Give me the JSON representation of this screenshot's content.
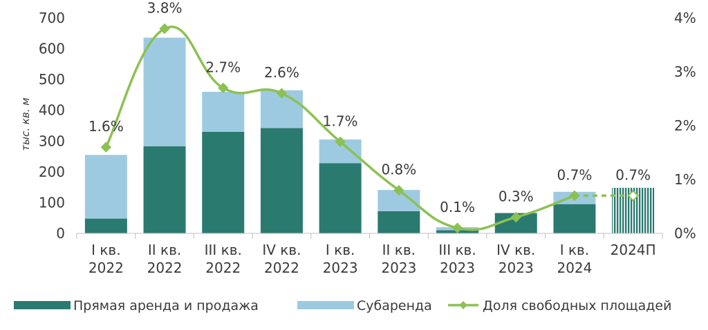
{
  "chart_data": {
    "type": "bar",
    "stacked": true,
    "categories": [
      [
        "I кв.",
        "2022"
      ],
      [
        "II кв.",
        "2022"
      ],
      [
        "III кв.",
        "2022"
      ],
      [
        "IV кв.",
        "2022"
      ],
      [
        "I кв.",
        "2023"
      ],
      [
        "II кв.",
        "2023"
      ],
      [
        "III кв.",
        "2023"
      ],
      [
        "IV кв.",
        "2023"
      ],
      [
        "I кв.",
        "2024"
      ],
      [
        "2024П"
      ]
    ],
    "series": [
      {
        "name": "Прямая аренда и продажа",
        "type": "bar",
        "color": "#2a7a70",
        "values": [
          48,
          283,
          330,
          342,
          228,
          72,
          10,
          66,
          95,
          148
        ]
      },
      {
        "name": "Субаренда",
        "type": "bar",
        "color": "#9ecae1",
        "values": [
          207,
          353,
          130,
          123,
          77,
          69,
          10,
          0,
          40,
          0
        ]
      },
      {
        "name": "Доля свободных площадей",
        "type": "line",
        "axis": "right",
        "color": "#8cc152",
        "values": [
          1.6,
          3.8,
          2.7,
          2.6,
          1.7,
          0.8,
          0.1,
          0.3,
          0.7,
          0.7
        ],
        "labels": [
          "1.6%",
          "3.8%",
          "2.7%",
          "2.6%",
          "1.7%",
          "0.8%",
          "0.1%",
          "0.3%",
          "0.7%",
          "0.7%"
        ]
      }
    ],
    "forecast_index": 9,
    "ylabel": "тыс. кв. м",
    "ylim": [
      0,
      700
    ],
    "yticks": [
      "0",
      "100",
      "200",
      "300",
      "400",
      "500",
      "600",
      "700"
    ],
    "y2lim": [
      0,
      4
    ],
    "y2ticks": [
      "0%",
      "1%",
      "2%",
      "3%",
      "4%"
    ],
    "legend_position": "bottom",
    "grid": false
  }
}
